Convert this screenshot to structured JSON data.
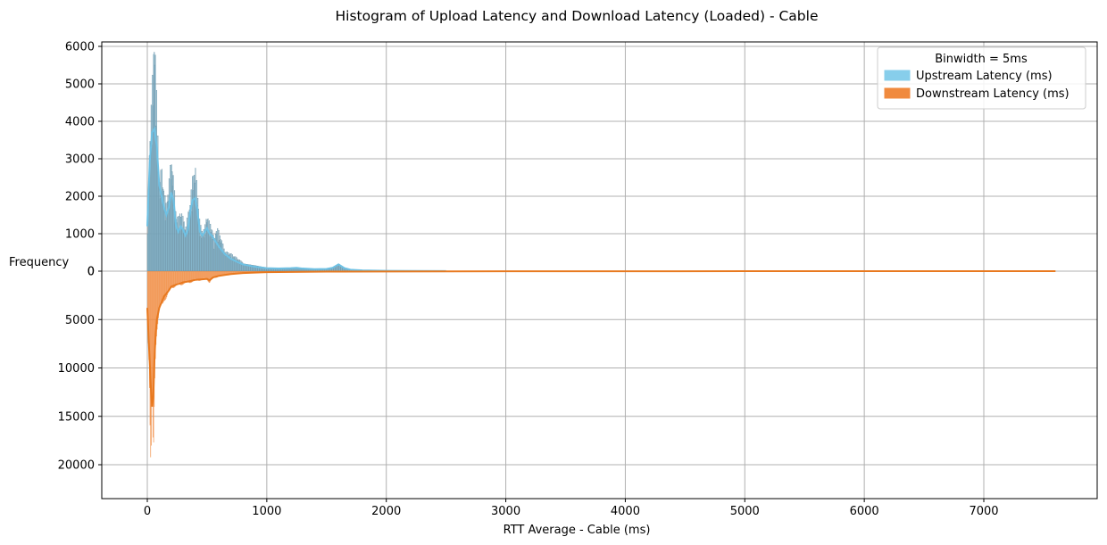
{
  "chart_data": {
    "type": "histogram",
    "title": "Histogram of Upload Latency and Download Latency (Loaded)  - Cable",
    "xlabel": "RTT Average - Cable (ms)",
    "ylabel": "Frequency",
    "binwidth_ms": 5,
    "legend": {
      "title": "Binwidth = 5ms",
      "placement": "top-right",
      "entries": [
        "Upstream Latency (ms)",
        "Downstream Latency (ms)"
      ]
    },
    "grid": true,
    "colors": {
      "upstream_fill": "#87CEEB",
      "upstream_kde": "#6EC1E4",
      "downstream_fill": "#F08A3E",
      "downstream_kde": "#E8791F",
      "overlap": "#6E8FA0"
    },
    "xlim": [
      -370,
      7940
    ],
    "x_ticks": [
      "0",
      "1000",
      "2000",
      "3000",
      "4000",
      "5000",
      "6000",
      "7000"
    ],
    "x_tick_values": [
      0,
      1000,
      2000,
      3000,
      4000,
      5000,
      6000,
      7000
    ],
    "upper_axis": {
      "ylim": [
        0,
        6100
      ],
      "ticks": [
        "0",
        "1000",
        "2000",
        "3000",
        "4000",
        "5000",
        "6000"
      ],
      "tick_values": [
        0,
        1000,
        2000,
        3000,
        4000,
        5000,
        6000
      ]
    },
    "lower_axis": {
      "ylim": [
        0,
        22000
      ],
      "ticks": [
        "0",
        "5000",
        "10000",
        "15000",
        "20000"
      ],
      "tick_values": [
        0,
        5000,
        10000,
        15000,
        20000
      ],
      "inverted": true
    },
    "series": [
      {
        "name": "Upstream Latency (ms)",
        "x_range": [
          0,
          2500
        ],
        "x": [
          0,
          20,
          40,
          60,
          80,
          100,
          120,
          140,
          160,
          180,
          200,
          220,
          240,
          260,
          280,
          300,
          320,
          340,
          360,
          380,
          400,
          420,
          440,
          460,
          480,
          500,
          520,
          540,
          560,
          580,
          600,
          650,
          700,
          750,
          800,
          900,
          1000,
          1100,
          1200,
          1250,
          1300,
          1400,
          1500,
          1550,
          1600,
          1650,
          1700,
          1800,
          2000,
          2200,
          2500
        ],
        "values": [
          1000,
          3000,
          4200,
          5600,
          3800,
          2000,
          2400,
          1800,
          1500,
          2000,
          2600,
          2100,
          1300,
          1200,
          1400,
          1200,
          1000,
          1300,
          1600,
          2200,
          2400,
          1800,
          1100,
          900,
          1000,
          1300,
          1100,
          1000,
          700,
          1000,
          900,
          450,
          400,
          300,
          200,
          150,
          90,
          70,
          60,
          80,
          60,
          50,
          40,
          80,
          200,
          80,
          40,
          25,
          15,
          10,
          3
        ],
        "kde": [
          1200,
          2900,
          3700,
          3800,
          3300,
          2300,
          2000,
          1700,
          1500,
          1700,
          2100,
          1900,
          1200,
          1050,
          1200,
          1100,
          950,
          1100,
          1600,
          1900,
          1950,
          1600,
          1050,
          950,
          1050,
          1150,
          1000,
          950,
          850,
          750,
          650,
          450,
          330,
          250,
          180,
          120,
          80,
          70,
          80,
          90,
          70,
          55,
          60,
          90,
          180,
          80,
          40,
          20,
          10,
          5,
          2
        ]
      },
      {
        "name": "Downstream Latency (ms)",
        "x_range": [
          0,
          7600
        ],
        "x": [
          0,
          15,
          30,
          40,
          50,
          60,
          70,
          80,
          100,
          120,
          140,
          160,
          180,
          200,
          220,
          250,
          280,
          300,
          350,
          400,
          450,
          500,
          520,
          550,
          600,
          700,
          800,
          900,
          1000,
          1500,
          2000,
          3000,
          5000,
          7600
        ],
        "values": [
          4000,
          9000,
          21500,
          13000,
          19500,
          11000,
          7000,
          5500,
          4000,
          3500,
          2700,
          2500,
          2200,
          1600,
          1500,
          1400,
          1300,
          1200,
          1100,
          900,
          850,
          800,
          1100,
          700,
          500,
          300,
          200,
          150,
          100,
          50,
          30,
          10,
          5,
          3
        ],
        "kde": [
          3800,
          8000,
          12000,
          14000,
          13000,
          9000,
          6500,
          5000,
          3800,
          3200,
          2600,
          2300,
          2000,
          1600,
          1500,
          1350,
          1250,
          1150,
          1050,
          900,
          850,
          800,
          950,
          650,
          480,
          300,
          200,
          150,
          100,
          50,
          30,
          10,
          5,
          3
        ]
      }
    ]
  }
}
